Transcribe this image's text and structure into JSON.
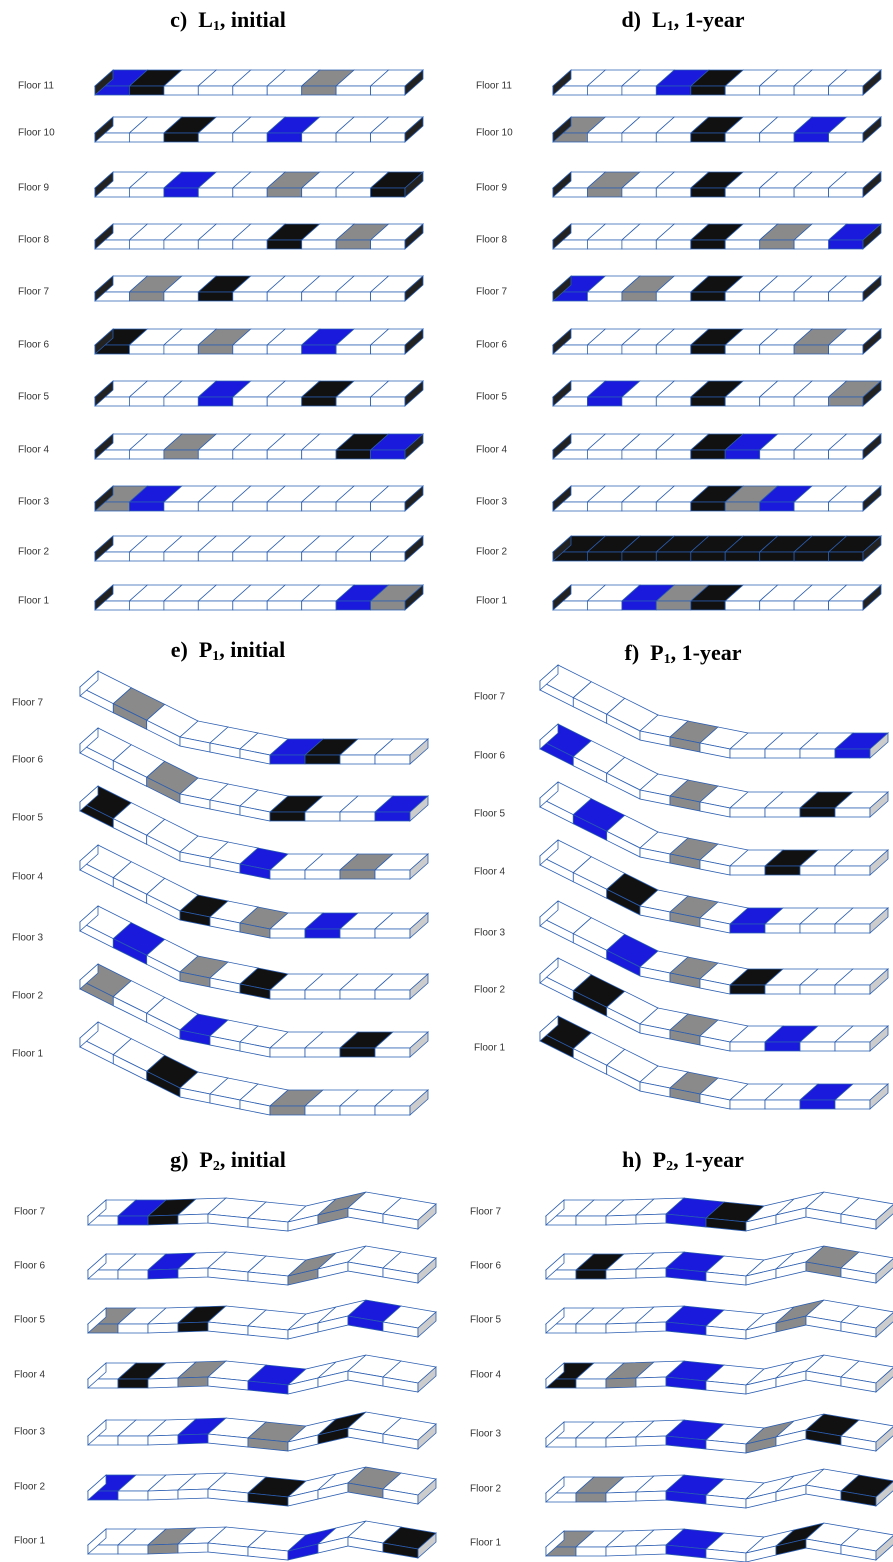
{
  "panels": [
    {
      "title": {
        "letter": "c)",
        "name": "L",
        "sub": "1",
        "suffix": ", initial"
      },
      "floors": [
        "Floor 11",
        "Floor 10",
        "Floor 9",
        "Floor 8",
        "Floor 7",
        "Floor 6",
        "Floor 5",
        "Floor 4",
        "Floor 3",
        "Floor 2",
        "Floor 1"
      ]
    },
    {
      "title": {
        "letter": "d)",
        "name": "L",
        "sub": "1",
        "suffix": ", 1-year"
      },
      "floors": [
        "Floor 11",
        "Floor 10",
        "Floor 9",
        "Floor 8",
        "Floor 7",
        "Floor 6",
        "Floor 5",
        "Floor 4",
        "Floor 3",
        "Floor 2",
        "Floor 1"
      ]
    },
    {
      "title": {
        "letter": "e)",
        "name": "P",
        "sub": "1",
        "suffix": ", initial"
      },
      "floors": [
        "Floor 7",
        "Floor 6",
        "Floor 5",
        "Floor 4",
        "Floor 3",
        "Floor 2",
        "Floor 1"
      ]
    },
    {
      "title": {
        "letter": "f)",
        "name": "P",
        "sub": "1",
        "suffix": ", 1-year"
      },
      "floors": [
        "Floor 7",
        "Floor 6",
        "Floor 5",
        "Floor 4",
        "Floor 3",
        "Floor 2",
        "Floor 1"
      ]
    },
    {
      "title": {
        "letter": "g)",
        "name": "P",
        "sub": "2",
        "suffix": ", initial"
      },
      "floors": [
        "Floor 7",
        "Floor 6",
        "Floor 5",
        "Floor 4",
        "Floor 3",
        "Floor 2",
        "Floor 1"
      ]
    },
    {
      "title": {
        "letter": "h)",
        "name": "P",
        "sub": "2",
        "suffix": ", 1-year"
      },
      "floors": [
        "Floor 7",
        "Floor 6",
        "Floor 5",
        "Floor 4",
        "Floor 3",
        "Floor 2",
        "Floor 1"
      ]
    }
  ]
}
